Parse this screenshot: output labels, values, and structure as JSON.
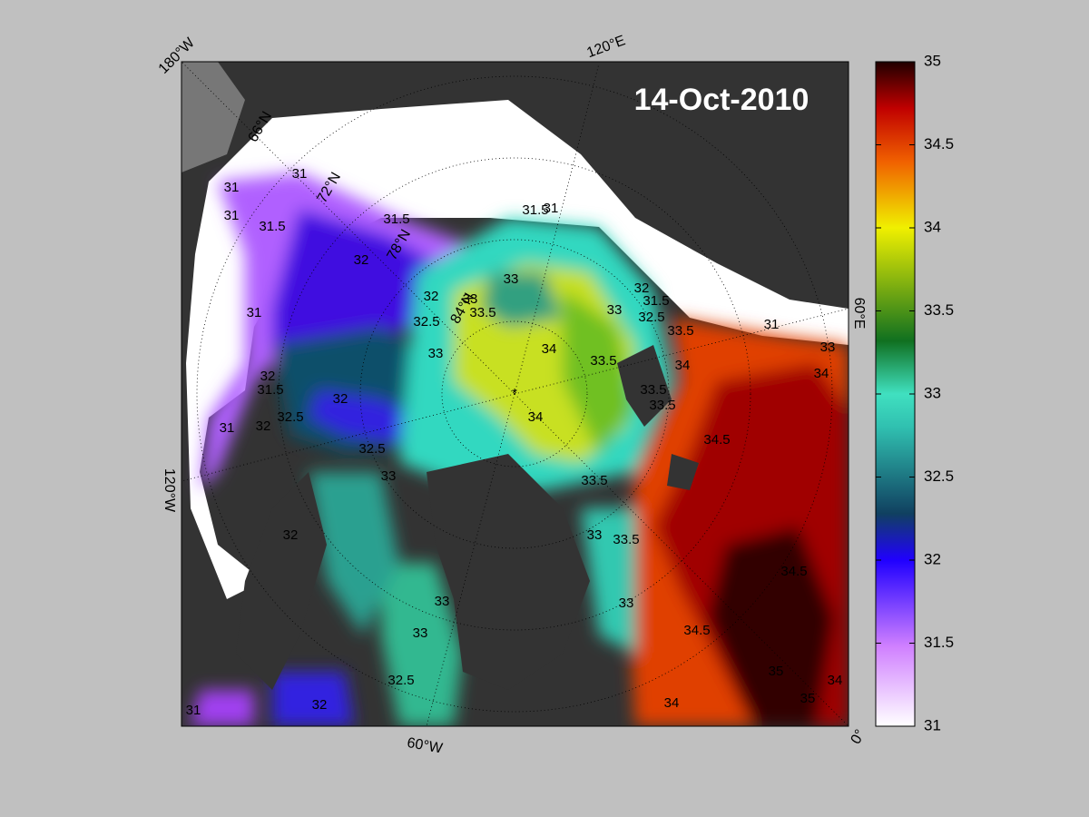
{
  "title": "14-Oct-2010",
  "map": {
    "longitude_labels": [
      "180°W",
      "120°E",
      "60°E",
      "0°",
      "60°W",
      "120°W"
    ],
    "latitude_labels": [
      "66°N",
      "72°N",
      "78°N",
      "84°N"
    ],
    "contour_labels": [
      31,
      31,
      31,
      31.5,
      31.5,
      32,
      32,
      32.5,
      33,
      33,
      33,
      33.5,
      34,
      34,
      33.5,
      33,
      32,
      31,
      31.5,
      31.5,
      32.5,
      33.5,
      34,
      33.5,
      33.5,
      31,
      33,
      34,
      34.5,
      33.5,
      33.5,
      33,
      33,
      34.5,
      34,
      34.5,
      34,
      35,
      35,
      32,
      32.5,
      32,
      31.5,
      32,
      32.5,
      33,
      32,
      33,
      33,
      32.5,
      32,
      31,
      31,
      31
    ]
  },
  "colorbar": {
    "range": [
      31,
      35
    ],
    "ticks": [
      31,
      31.5,
      32,
      32.5,
      33,
      33.5,
      34,
      34.5,
      35
    ]
  }
}
